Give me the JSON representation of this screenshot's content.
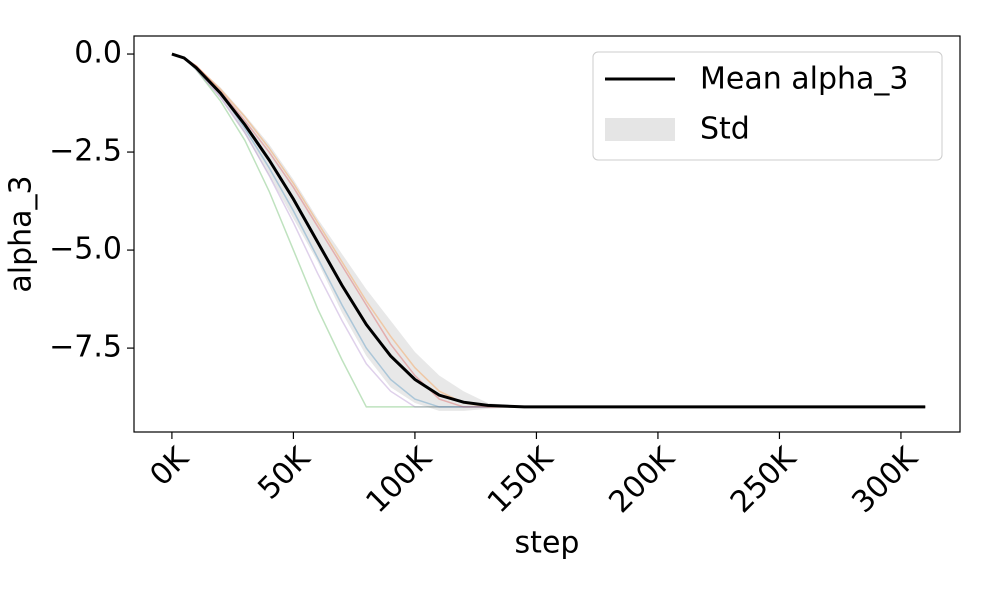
{
  "chart_data": {
    "type": "line",
    "x_label": "step",
    "y_label": "alpha_3",
    "x": [
      0,
      5000,
      10000,
      20000,
      30000,
      40000,
      50000,
      60000,
      70000,
      80000,
      90000,
      100000,
      110000,
      120000,
      130000,
      145000,
      310000
    ],
    "series": [
      {
        "name": "Mean alpha_3",
        "color": "#000000",
        "values": [
          0,
          -0.1,
          -0.35,
          -1.0,
          -1.8,
          -2.7,
          -3.7,
          -4.8,
          -5.9,
          -6.9,
          -7.7,
          -8.3,
          -8.7,
          -8.88,
          -8.96,
          -9.0,
          -9.0
        ]
      }
    ],
    "band": {
      "name": "Std",
      "color": "#e5e5e5",
      "upper": [
        0,
        -0.08,
        -0.3,
        -0.85,
        -1.55,
        -2.3,
        -3.2,
        -4.2,
        -5.1,
        -6.0,
        -6.8,
        -7.6,
        -8.2,
        -8.6,
        -8.9,
        -9.0,
        -9.0
      ],
      "lower": [
        0,
        -0.12,
        -0.4,
        -1.15,
        -2.05,
        -3.1,
        -4.2,
        -5.3,
        -6.6,
        -7.7,
        -8.5,
        -8.9,
        -9.1,
        -9.1,
        -9.05,
        -9.0,
        -9.0
      ]
    },
    "runs": [
      {
        "color": "#2ca02c",
        "values": [
          0,
          -0.1,
          -0.4,
          -1.2,
          -2.2,
          -3.5,
          -5.0,
          -6.5,
          -7.8,
          -9.0,
          -9.0,
          -9.0,
          -9.0,
          -9.0,
          -9.0,
          -9.0,
          -9.0
        ]
      },
      {
        "color": "#1f77b4",
        "values": [
          0,
          -0.1,
          -0.35,
          -1.0,
          -1.9,
          -2.9,
          -4.0,
          -5.2,
          -6.4,
          -7.5,
          -8.3,
          -8.8,
          -9.0,
          -9.0,
          -9.0,
          -9.0,
          -9.0
        ]
      },
      {
        "color": "#ff7f0e",
        "values": [
          0,
          -0.1,
          -0.3,
          -0.9,
          -1.6,
          -2.4,
          -3.3,
          -4.3,
          -5.3,
          -6.3,
          -7.2,
          -8.0,
          -8.6,
          -8.9,
          -9.0,
          -9.0,
          -9.0
        ]
      },
      {
        "color": "#d62728",
        "values": [
          0,
          -0.1,
          -0.3,
          -0.95,
          -1.7,
          -2.5,
          -3.4,
          -4.4,
          -5.4,
          -6.4,
          -7.4,
          -8.2,
          -8.8,
          -9.0,
          -9.0,
          -9.0,
          -9.0
        ]
      },
      {
        "color": "#9467bd",
        "values": [
          0,
          -0.1,
          -0.4,
          -1.1,
          -2.0,
          -3.1,
          -4.3,
          -5.6,
          -6.8,
          -7.9,
          -8.6,
          -9.0,
          -9.0,
          -9.0,
          -9.0,
          -9.0,
          -9.0
        ]
      }
    ],
    "xlim": [
      -15600,
      324300
    ],
    "ylim": [
      -9.64,
      0.46
    ],
    "xticks": [
      {
        "value": 0,
        "label": "0K"
      },
      {
        "value": 50000,
        "label": "50K"
      },
      {
        "value": 100000,
        "label": "100K"
      },
      {
        "value": 150000,
        "label": "150K"
      },
      {
        "value": 200000,
        "label": "200K"
      },
      {
        "value": 250000,
        "label": "250K"
      },
      {
        "value": 300000,
        "label": "300K"
      }
    ],
    "yticks": [
      {
        "value": 0,
        "label": "0.0"
      },
      {
        "value": -2.5,
        "label": "−2.5"
      },
      {
        "value": -5,
        "label": "−5.0"
      },
      {
        "value": -7.5,
        "label": "−7.5"
      }
    ],
    "legend": "upper right"
  }
}
